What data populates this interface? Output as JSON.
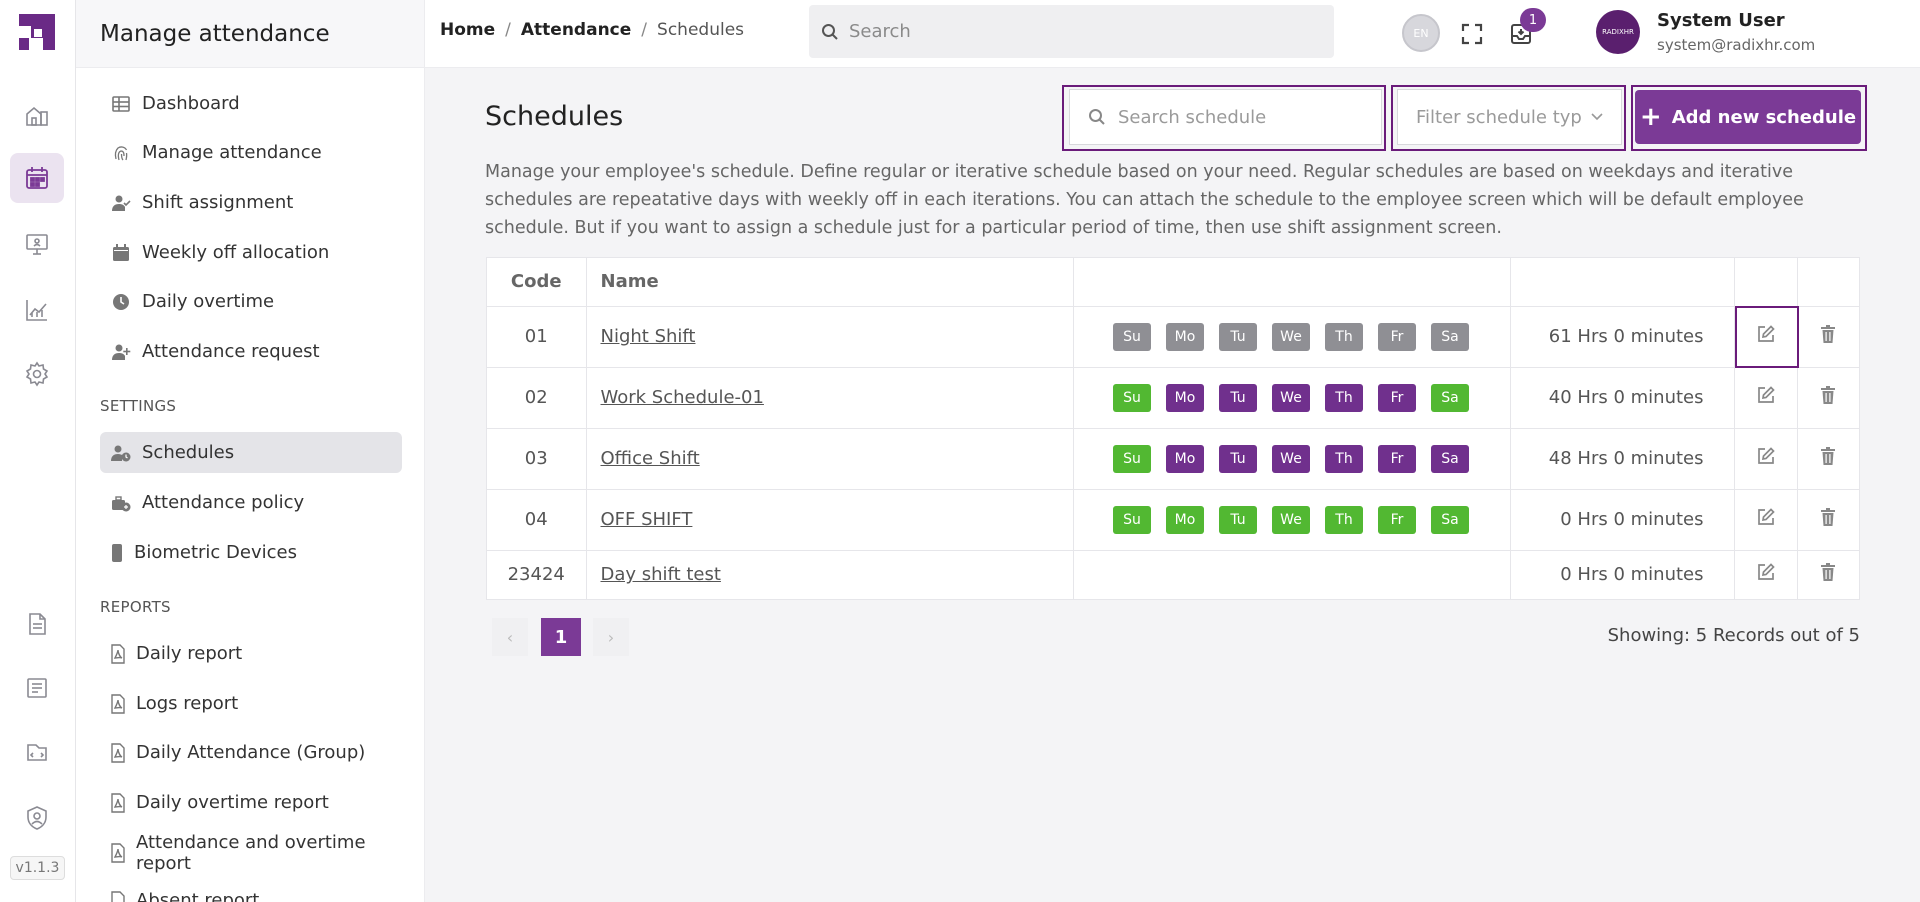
{
  "app": {
    "version": "v1.1.3"
  },
  "subnav": {
    "title": "Manage attendance",
    "items": [
      {
        "label": "Dashboard",
        "icon": "table-icon"
      },
      {
        "label": "Manage attendance",
        "icon": "fingerprint-icon"
      },
      {
        "label": "Shift assignment",
        "icon": "user-check-icon"
      },
      {
        "label": "Weekly off allocation",
        "icon": "calendar-icon"
      },
      {
        "label": "Daily overtime",
        "icon": "clock-icon"
      },
      {
        "label": "Attendance request",
        "icon": "user-plus-icon"
      }
    ],
    "settings_label": "SETTINGS",
    "settings_items": [
      {
        "label": "Schedules",
        "icon": "user-clock-icon"
      },
      {
        "label": "Attendance policy",
        "icon": "policy-icon"
      },
      {
        "label": "Biometric Devices",
        "icon": "device-icon"
      }
    ],
    "reports_label": "REPORTS",
    "reports_items": [
      {
        "label": "Daily report"
      },
      {
        "label": "Logs report"
      },
      {
        "label": "Daily Attendance (Group)"
      },
      {
        "label": "Daily overtime report"
      },
      {
        "label": "Attendance and overtime report"
      },
      {
        "label": "Absent report"
      }
    ]
  },
  "topbar": {
    "breadcrumb": [
      "Home",
      "Attendance",
      "Schedules"
    ],
    "search_placeholder": "Search",
    "lang": "EN",
    "notification_count": "1",
    "avatar_text": "RADIXHR",
    "user_name": "System User",
    "user_email": "system@radixhr.com"
  },
  "main": {
    "title": "Schedules",
    "search_placeholder": "Search schedule",
    "filter_placeholder": "Filter schedule type",
    "add_button": "Add new schedule",
    "description": "Manage your employee's schedule. Define regular or iterative schedule based on your need. Regular schedules are based on weekdays and iterative schedules are repeatative days with weekly off in each iterations. You can attach the schedule to the employee screen which will be default employee schedule. But if you want to assign a schedule just for a particular period of time, then use shift assignment screen.",
    "table": {
      "headers": {
        "code": "Code",
        "name": "Name"
      },
      "rows": [
        {
          "code": "01",
          "name": "Night Shift",
          "hours": "61 Hrs 0 minutes",
          "days": [
            [
              "Su",
              "grey"
            ],
            [
              "Mo",
              "grey"
            ],
            [
              "Tu",
              "grey"
            ],
            [
              "We",
              "grey"
            ],
            [
              "Th",
              "grey"
            ],
            [
              "Fr",
              "grey"
            ],
            [
              "Sa",
              "grey"
            ]
          ]
        },
        {
          "code": "02",
          "name": "Work Schedule-01",
          "hours": "40 Hrs 0 minutes",
          "days": [
            [
              "Su",
              "green"
            ],
            [
              "Mo",
              "purple"
            ],
            [
              "Tu",
              "purple"
            ],
            [
              "We",
              "purple"
            ],
            [
              "Th",
              "purple"
            ],
            [
              "Fr",
              "purple"
            ],
            [
              "Sa",
              "green"
            ]
          ]
        },
        {
          "code": "03",
          "name": "Office Shift",
          "hours": "48 Hrs 0 minutes",
          "days": [
            [
              "Su",
              "green"
            ],
            [
              "Mo",
              "purple"
            ],
            [
              "Tu",
              "purple"
            ],
            [
              "We",
              "purple"
            ],
            [
              "Th",
              "purple"
            ],
            [
              "Fr",
              "purple"
            ],
            [
              "Sa",
              "purple"
            ]
          ]
        },
        {
          "code": "04",
          "name": "OFF SHIFT",
          "hours": "0 Hrs 0 minutes",
          "days": [
            [
              "Su",
              "green"
            ],
            [
              "Mo",
              "green"
            ],
            [
              "Tu",
              "green"
            ],
            [
              "We",
              "green"
            ],
            [
              "Th",
              "green"
            ],
            [
              "Fr",
              "green"
            ],
            [
              "Sa",
              "green"
            ]
          ]
        },
        {
          "code": "23424",
          "name": "Day shift test",
          "hours": "0 Hrs 0 minutes",
          "days": []
        }
      ]
    },
    "pagination": {
      "prev": "‹",
      "current": "1",
      "next": "›"
    },
    "showing": "Showing: 5 Records out of 5"
  },
  "colors": {
    "accent": "#7b3a96",
    "day_on": "#70308d",
    "day_off": "#52b832",
    "day_inactive": "#8f8f94"
  }
}
